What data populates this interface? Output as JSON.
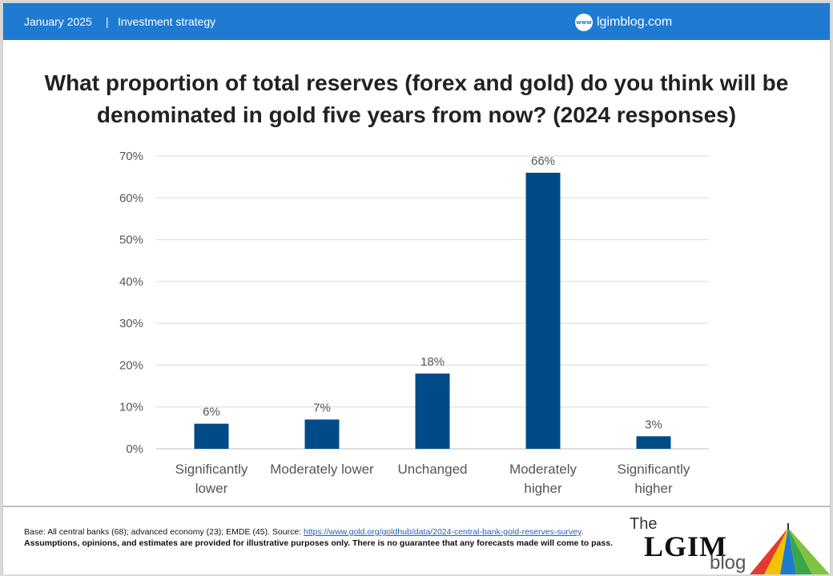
{
  "header": {
    "date": "January 2025",
    "separator": "|",
    "category": "Investment strategy",
    "site": "lgimblog.com",
    "site_icon_text": "www"
  },
  "title": "What proportion of total reserves (forex and gold) do you think will be denominated in gold five years from now? (2024 responses)",
  "chart_data": {
    "type": "bar",
    "categories": [
      [
        "Significantly",
        "lower"
      ],
      [
        "Moderately lower"
      ],
      [
        "Unchanged"
      ],
      [
        "Moderately",
        "higher"
      ],
      [
        "Significantly",
        "higher"
      ]
    ],
    "values": [
      6,
      7,
      18,
      66,
      3
    ],
    "value_labels": [
      "6%",
      "7%",
      "18%",
      "66%",
      "3%"
    ],
    "ylim": [
      0,
      70
    ],
    "yticks": [
      "0%",
      "10%",
      "20%",
      "30%",
      "40%",
      "50%",
      "60%",
      "70%"
    ],
    "grid": true,
    "bar_color": "#004b87"
  },
  "footer": {
    "note_prefix": "Base: All central banks (68); advanced economy (23); EMDE (45). Source: ",
    "link_text": "https://www.gold.org/goldhub/data/2024-central-bank-gold-reserves-survey",
    "note_suffix": ". ",
    "disclaimer": "Assumptions, opinions, and estimates are provided for illustrative purposes only. There is no guarantee that any forecasts made will come to pass.",
    "logo_the": "The",
    "logo_lgim": "LGIM",
    "logo_blog": "blog"
  },
  "colors": {
    "header_bg": "#1f7ad1",
    "accent": "#004b87"
  }
}
